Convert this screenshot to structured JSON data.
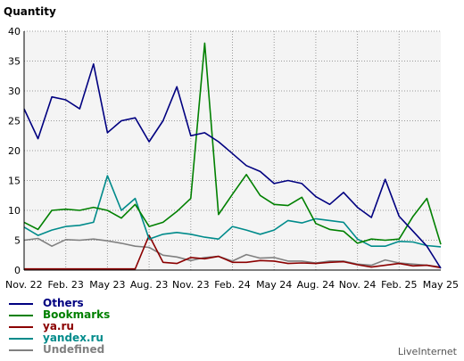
{
  "chart_data": {
    "type": "line",
    "ylabel": "Quantity",
    "ylim": [
      0,
      40
    ],
    "yticks": [
      0,
      5,
      10,
      15,
      20,
      25,
      30,
      35,
      40
    ],
    "x_tick_labels": [
      "Nov. 22",
      "Feb. 23",
      "May 23",
      "Aug. 23",
      "Nov. 23",
      "Feb. 24",
      "May 24",
      "Aug. 24",
      "Nov. 24",
      "Feb. 25",
      "May 25"
    ],
    "grid": true,
    "legend_position": "bottom-left",
    "series": [
      {
        "name": "Others",
        "color": "#000080",
        "values": [
          27,
          22,
          29,
          28.5,
          27,
          34.5,
          23,
          25,
          25.5,
          21.5,
          25,
          30.7,
          22.5,
          23,
          21.5,
          19.5,
          17.5,
          16.5,
          14.5,
          15,
          14.5,
          12.3,
          11,
          13,
          10.5,
          8.8,
          15.2,
          9,
          6.5,
          4,
          0.3
        ]
      },
      {
        "name": "Bookmarks",
        "color": "#008000",
        "values": [
          8,
          6.8,
          10,
          10.2,
          10,
          10.5,
          10,
          8.7,
          11,
          7.3,
          8,
          9.8,
          12,
          38,
          9.3,
          12.7,
          16,
          12.5,
          11,
          10.8,
          12.2,
          7.8,
          6.8,
          6.5,
          4.5,
          5.2,
          5,
          5.2,
          9,
          12,
          4.3
        ]
      },
      {
        "name": "ya.ru",
        "color": "#8B0000",
        "values": [
          0.2,
          0.2,
          0.2,
          0.2,
          0.2,
          0.2,
          0.2,
          0.2,
          0.2,
          5.8,
          1.3,
          1.1,
          2.1,
          1.9,
          2.3,
          1.3,
          1.3,
          1.6,
          1.5,
          1.1,
          1.2,
          1.1,
          1.3,
          1.4,
          0.9,
          0.5,
          0.8,
          1.1,
          0.7,
          0.8,
          0.4
        ]
      },
      {
        "name": "yandex.ru",
        "color": "#008B8B",
        "values": [
          7.2,
          5.8,
          6.7,
          7.3,
          7.5,
          8,
          15.8,
          10,
          12,
          5.2,
          6,
          6.3,
          6,
          5.5,
          5.2,
          7.3,
          6.7,
          6,
          6.7,
          8.3,
          7.9,
          8.6,
          8.3,
          8,
          5.2,
          4,
          4,
          4.8,
          4.7,
          4.1,
          3.9
        ]
      },
      {
        "name": "Undefined",
        "color": "#808080",
        "values": [
          5,
          5.3,
          4,
          5.1,
          5,
          5.2,
          4.9,
          4.5,
          4,
          3.8,
          2.5,
          2.2,
          1.6,
          2.1,
          2.3,
          1.5,
          2.6,
          2,
          2.1,
          1.5,
          1.5,
          1.2,
          1.5,
          1.5,
          1,
          0.8,
          1.7,
          1.2,
          1,
          0.8,
          0.5
        ]
      }
    ]
  },
  "credit": "LiveInternet"
}
